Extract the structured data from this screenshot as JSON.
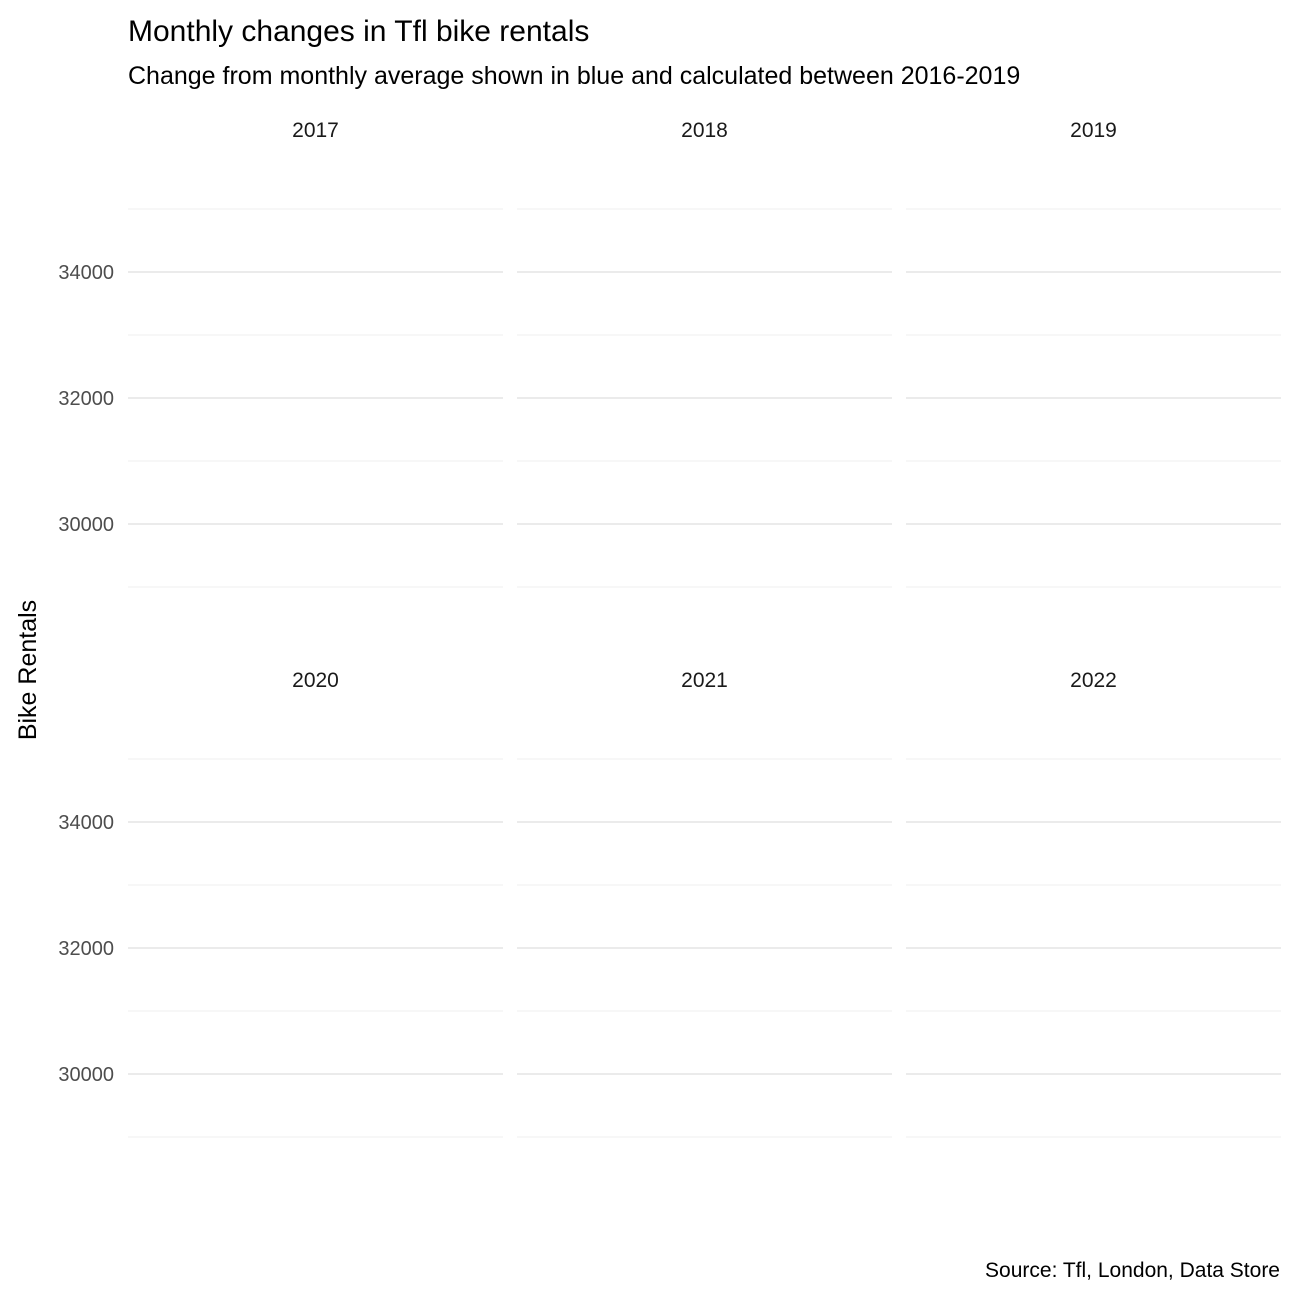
{
  "chart_data": {
    "type": "line",
    "title": "Monthly changes in Tfl bike rentals",
    "subtitle": "Change from monthly average shown in blue and calculated between 2016-2019",
    "ylabel": "Bike Rentals",
    "xlabel": "",
    "caption": "Source: Tfl, London, Data Store",
    "facets": [
      "2017",
      "2018",
      "2019",
      "2020",
      "2021",
      "2022"
    ],
    "facet_layout": "2 rows x 3 columns",
    "y_ticks": [
      30000,
      32000,
      34000
    ],
    "ylim": [
      28000,
      35000
    ],
    "grid": true,
    "series": []
  }
}
